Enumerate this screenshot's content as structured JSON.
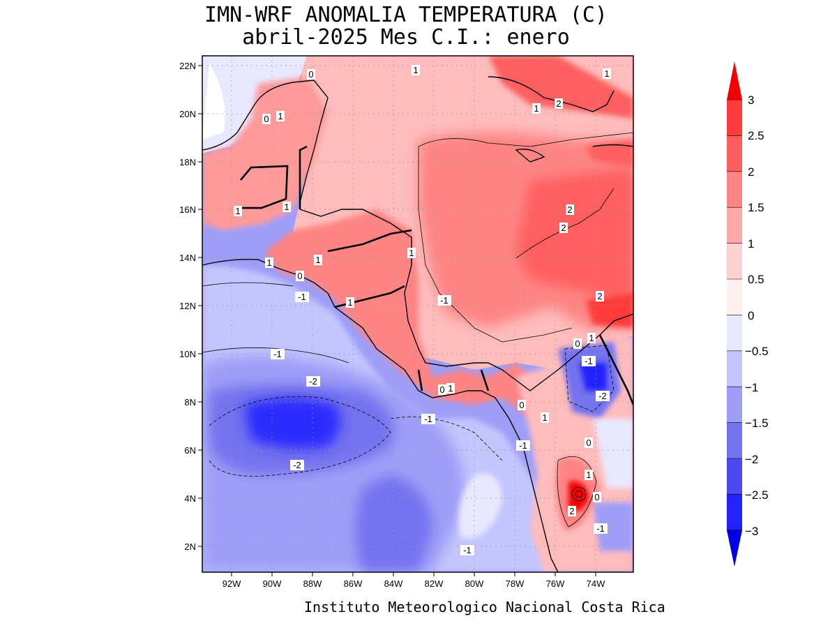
{
  "title": {
    "line1": "IMN-WRF  ANOMALIA TEMPERATURA (C)",
    "line2": "abril-2025 Mes C.I.: enero"
  },
  "credit": "Instituto Meteorologico Nacional Costa Rica",
  "map": {
    "lat_labels": [
      "22N",
      "20N",
      "18N",
      "16N",
      "14N",
      "12N",
      "10N",
      "8N",
      "6N",
      "4N",
      "2N"
    ],
    "lon_labels": [
      "92W",
      "90W",
      "88W",
      "86W",
      "84W",
      "82W",
      "80W",
      "78W",
      "76W",
      "74W"
    ],
    "contour_labels": [
      {
        "text": "0"
      },
      {
        "text": "1"
      },
      {
        "text": "0"
      },
      {
        "text": "1"
      },
      {
        "text": "1"
      },
      {
        "text": "2"
      },
      {
        "text": "1"
      },
      {
        "text": "1"
      },
      {
        "text": "1"
      },
      {
        "text": "2"
      },
      {
        "text": "2"
      },
      {
        "text": "1"
      },
      {
        "text": "1"
      },
      {
        "text": "0"
      },
      {
        "text": "-1"
      },
      {
        "text": "1"
      },
      {
        "text": "1"
      },
      {
        "text": "2"
      },
      {
        "text": "-1"
      },
      {
        "text": "-2"
      },
      {
        "text": "0"
      },
      {
        "text": "1"
      },
      {
        "text": "0"
      },
      {
        "text": "1"
      },
      {
        "text": "-1"
      },
      {
        "text": "-1"
      },
      {
        "text": "-2"
      },
      {
        "text": "-1"
      },
      {
        "text": "-2"
      },
      {
        "text": "1"
      },
      {
        "text": "0"
      },
      {
        "text": "0"
      },
      {
        "text": "-1"
      },
      {
        "text": "2"
      },
      {
        "text": "-1"
      },
      {
        "text": "-1"
      },
      {
        "text": "0"
      },
      {
        "text": "1"
      }
    ]
  },
  "colorbar": {
    "labels": [
      "3",
      "2.5",
      "2",
      "1.5",
      "1",
      "0.5",
      "0",
      "−0.5",
      "−1",
      "−1.5",
      "−2",
      "−2.5",
      "−3"
    ],
    "colors": [
      "#f50000",
      "#ff3a3a",
      "#ff5e5e",
      "#ff8484",
      "#ffa8a8",
      "#ffd0d0",
      "#fff0f0",
      "#e8e8ff",
      "#c4c4ff",
      "#9e9ef8",
      "#7373f0",
      "#4a4af0",
      "#2222ff",
      "#0000e6"
    ]
  }
}
